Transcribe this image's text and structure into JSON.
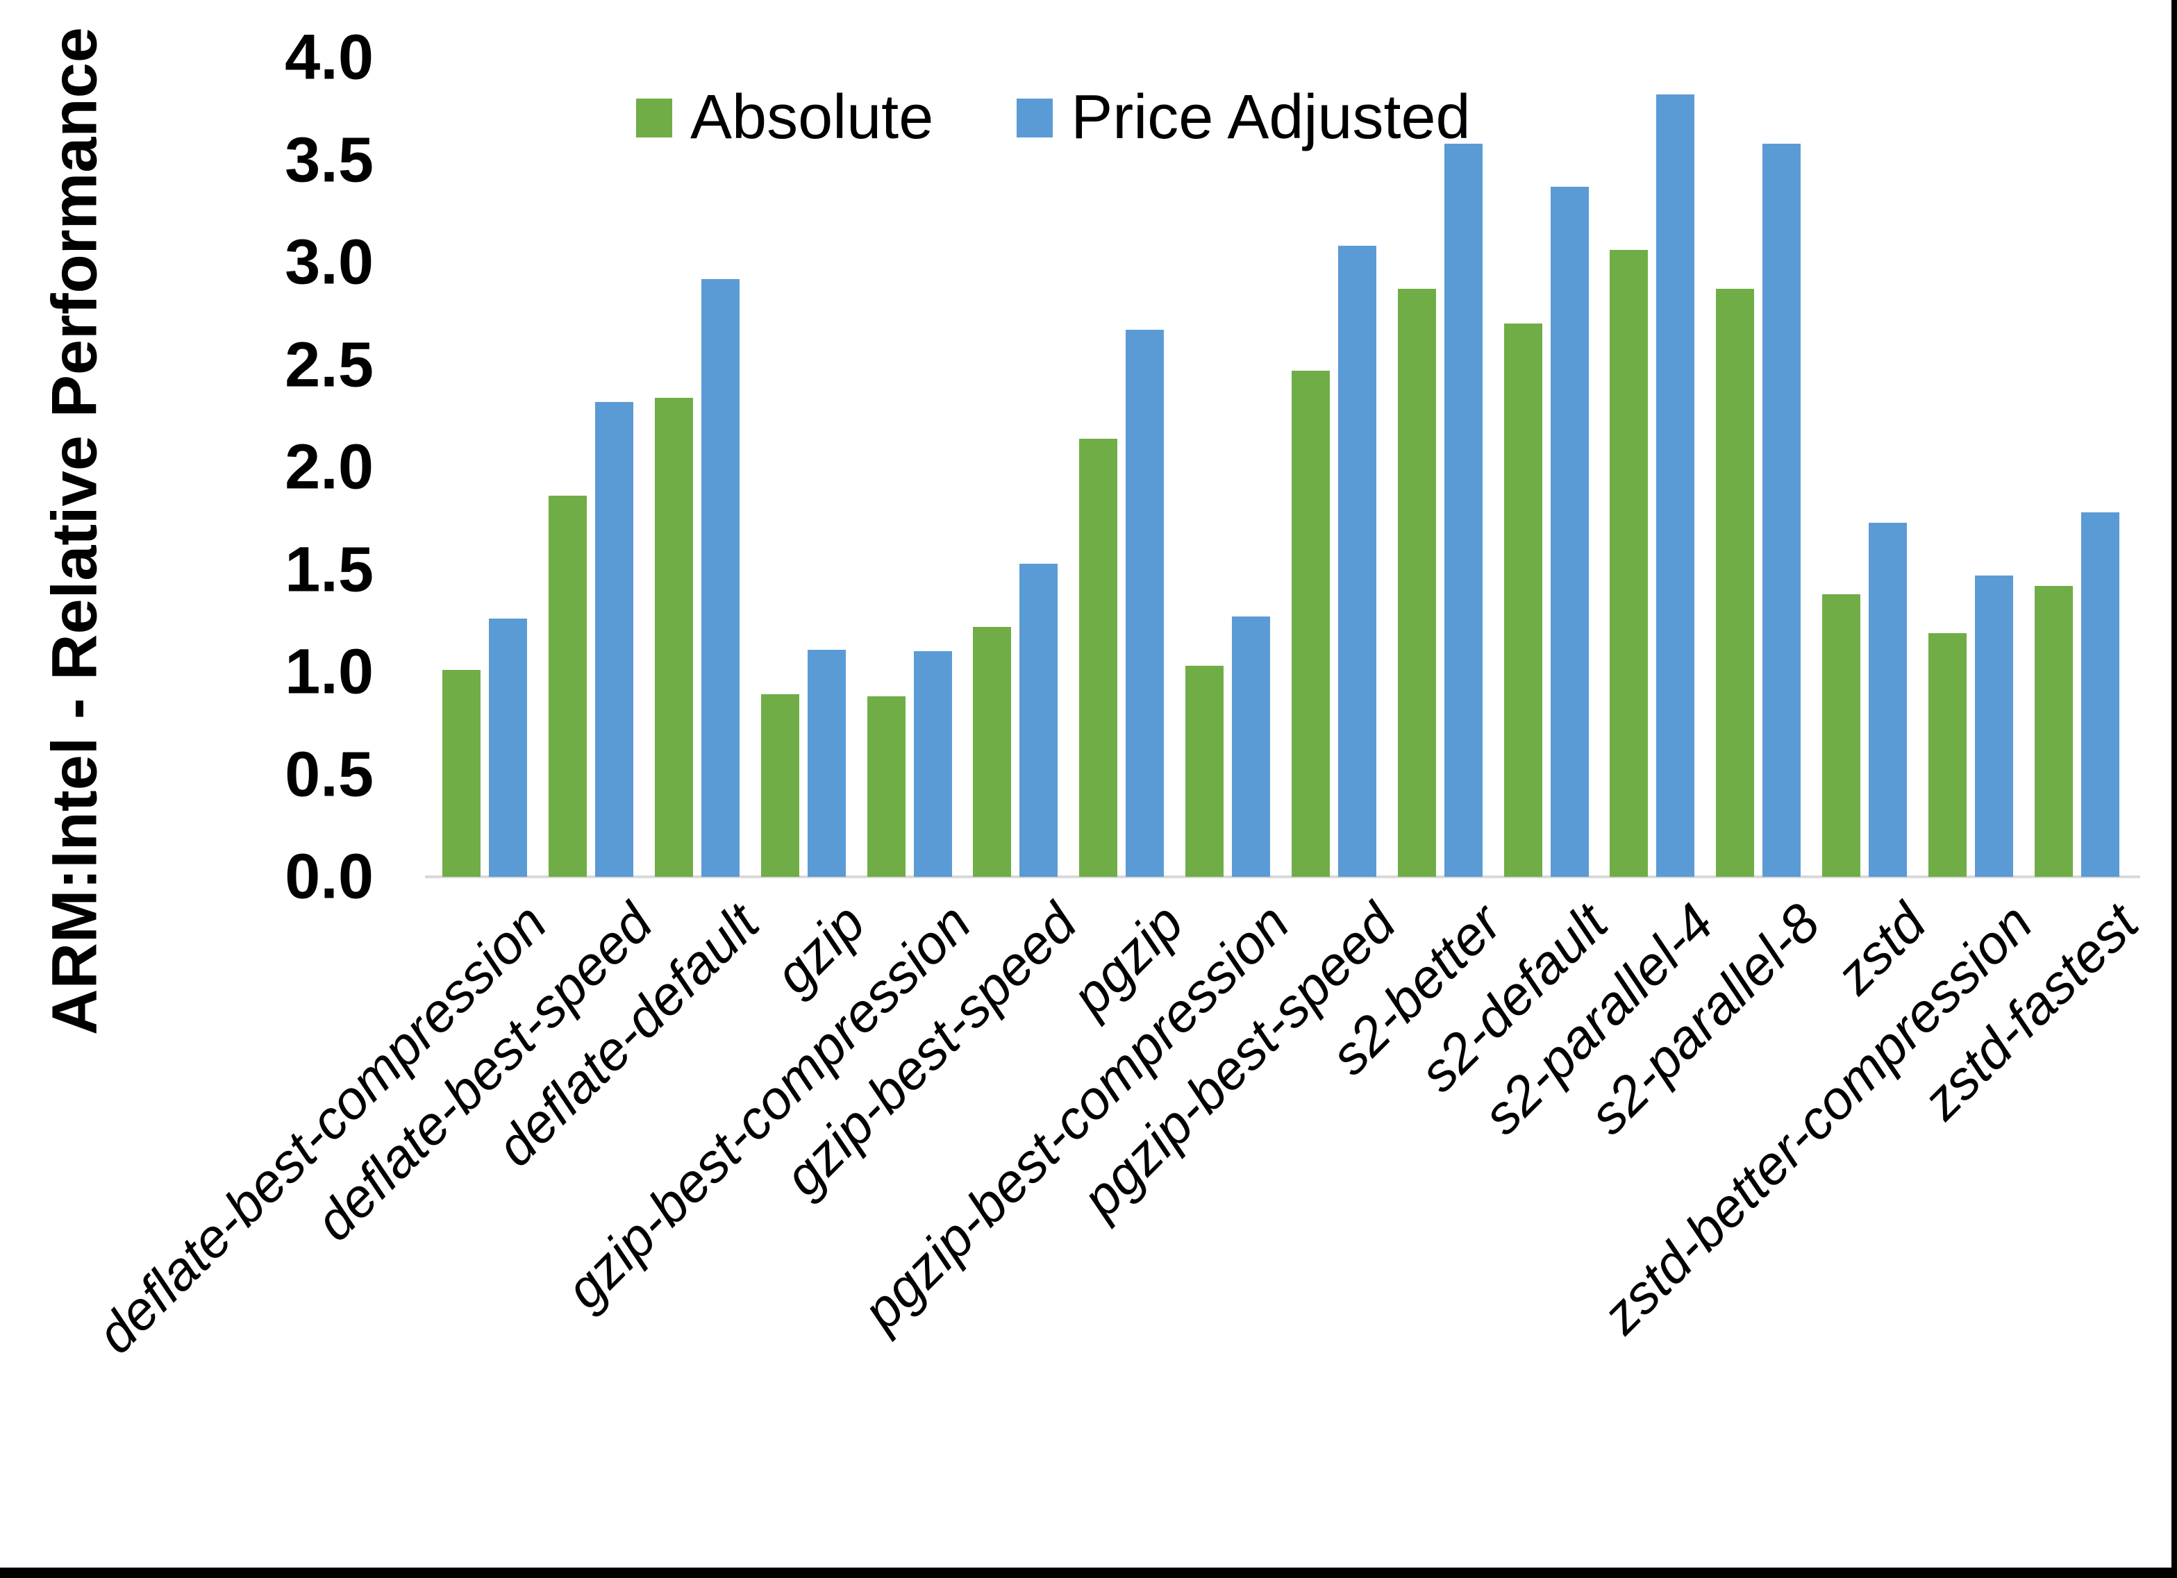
{
  "chart_data": {
    "type": "bar",
    "title": "",
    "xlabel": "",
    "ylabel": "ARM:Intel - Relative Performance",
    "ylim": [
      0.0,
      4.0
    ],
    "ytick_step": 0.5,
    "y_tick_labels": [
      "0.0",
      "0.5",
      "1.0",
      "1.5",
      "2.0",
      "2.5",
      "3.0",
      "3.5",
      "4.0"
    ],
    "grid": false,
    "legend_position": "top-center",
    "categories": [
      "deflate-best-compression",
      "deflate-best-speed",
      "deflate-default",
      "gzip",
      "gzip-best-compression",
      "gzip-best-speed",
      "pgzip",
      "pgzip-best-compression",
      "pgzip-best-speed",
      "s2-better",
      "s2-default",
      "s2-parallel-4",
      "s2-parallel-8",
      "zstd",
      "zstd-better-compression",
      "zstd-fastest"
    ],
    "series": [
      {
        "name": "Absolute",
        "color": "#70AD47",
        "values": [
          1.01,
          1.86,
          2.34,
          0.89,
          0.88,
          1.22,
          2.14,
          1.03,
          2.47,
          2.87,
          2.7,
          3.06,
          2.87,
          1.38,
          1.19,
          1.42
        ]
      },
      {
        "name": "Price Adjusted",
        "color": "#5B9BD5",
        "values": [
          1.26,
          2.32,
          2.92,
          1.11,
          1.1,
          1.53,
          2.67,
          1.27,
          3.08,
          3.58,
          3.37,
          3.82,
          3.58,
          1.73,
          1.47,
          1.78
        ]
      }
    ]
  },
  "legend": {
    "items": [
      {
        "label": "Absolute",
        "color": "#70AD47"
      },
      {
        "label": "Price Adjusted",
        "color": "#5B9BD5"
      }
    ]
  },
  "colors": {
    "absolute": "#70AD47",
    "price_adjusted": "#5B9BD5",
    "axis_line": "#D9D9D9",
    "text": "#000000",
    "frame": "#000000"
  }
}
